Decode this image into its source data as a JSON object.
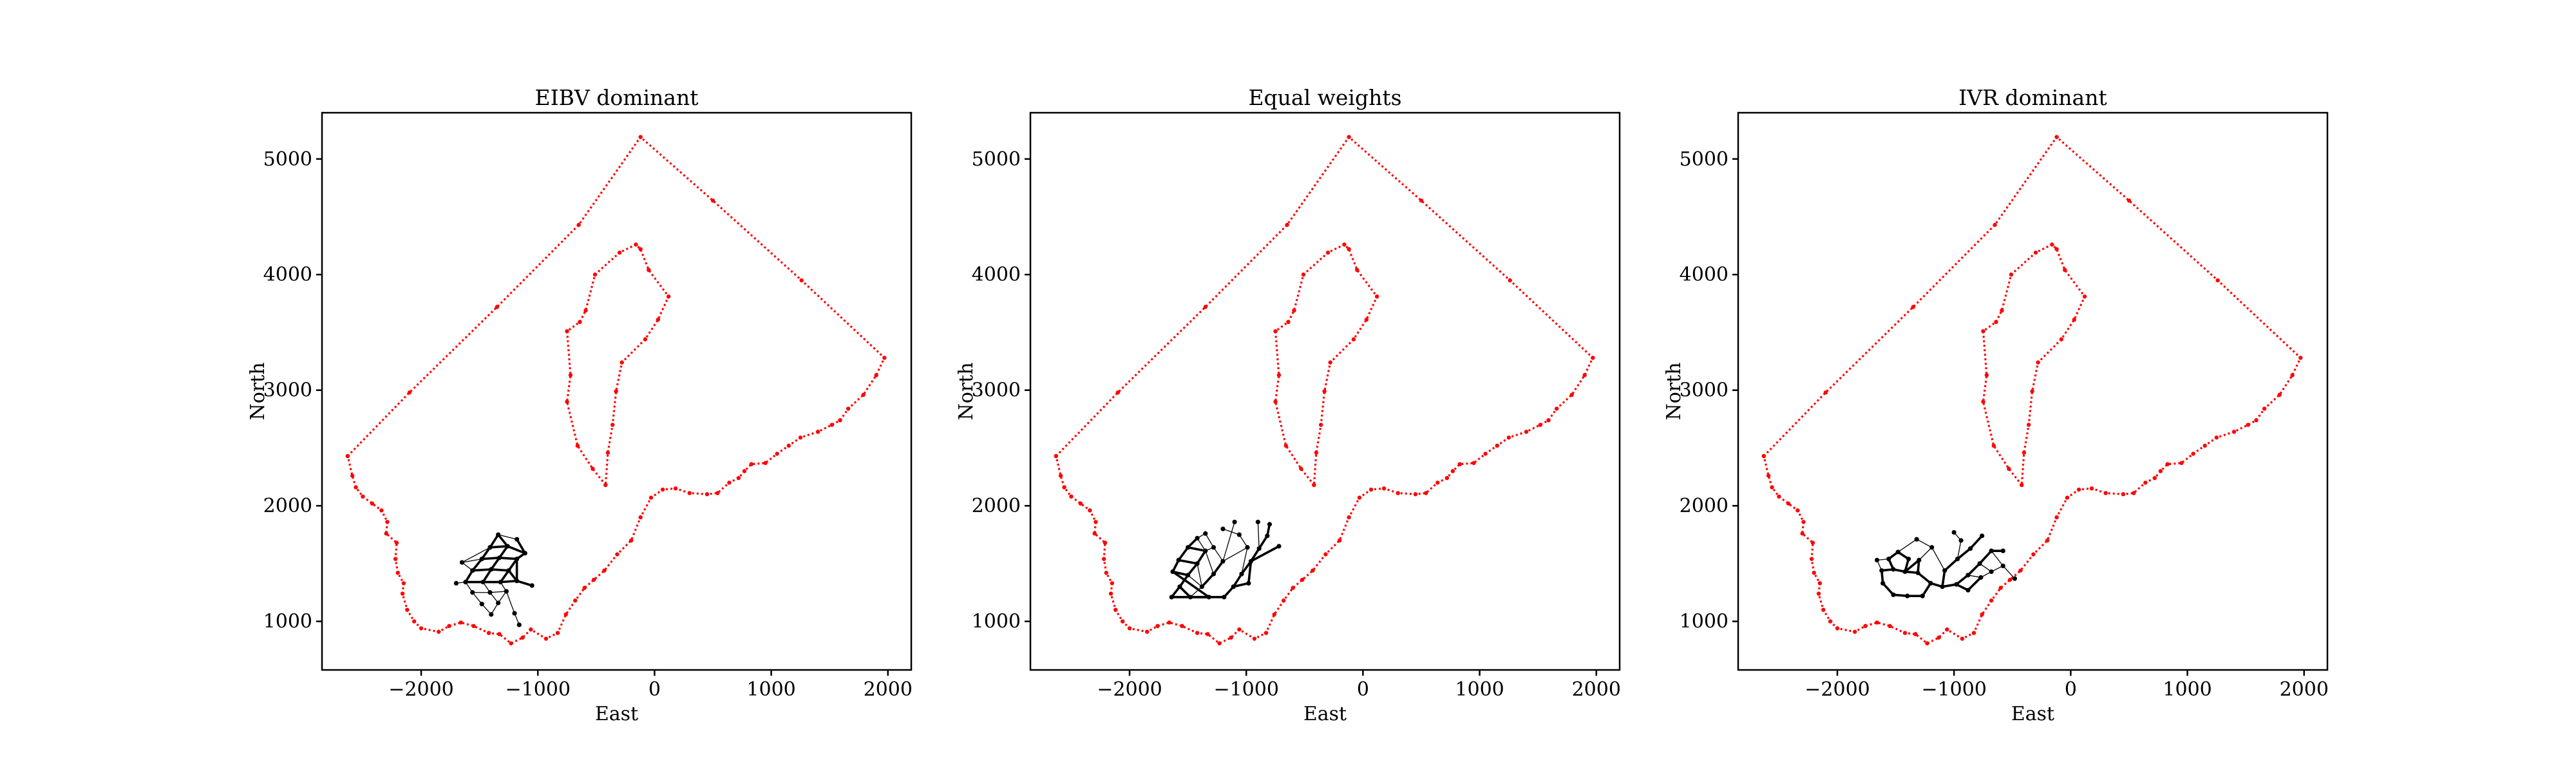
{
  "chart_data": [
    {
      "type": "scatter",
      "title": "EIBV dominant",
      "xlabel": "East",
      "ylabel": "North",
      "xlim": [
        -2850,
        2200
      ],
      "ylim": [
        580,
        5400
      ],
      "xticks": [
        -2000,
        -1000,
        0,
        1000,
        2000
      ],
      "yticks": [
        1000,
        2000,
        3000,
        4000,
        5000
      ],
      "boundary_color": "#ff0000",
      "path_color": "#000000",
      "paths": {
        "nodes": [
          [
            -1340,
            1750
          ],
          [
            -1180,
            1710
          ],
          [
            -1410,
            1640
          ],
          [
            -1260,
            1650
          ],
          [
            -1110,
            1590
          ],
          [
            -1480,
            1540
          ],
          [
            -1330,
            1550
          ],
          [
            -1180,
            1540
          ],
          [
            -1560,
            1440
          ],
          [
            -1400,
            1450
          ],
          [
            -1250,
            1440
          ],
          [
            -1620,
            1340
          ],
          [
            -1470,
            1340
          ],
          [
            -1320,
            1340
          ],
          [
            -1180,
            1350
          ],
          [
            -1050,
            1310
          ],
          [
            -1560,
            1250
          ],
          [
            -1410,
            1250
          ],
          [
            -1270,
            1260
          ],
          [
            -1480,
            1150
          ],
          [
            -1340,
            1160
          ],
          [
            -1400,
            1060
          ],
          [
            -1200,
            1070
          ],
          [
            -1160,
            970
          ],
          [
            -1650,
            1510
          ],
          [
            -1700,
            1330
          ]
        ],
        "heavy": [
          [
            0,
            2
          ],
          [
            2,
            5
          ],
          [
            5,
            8
          ],
          [
            8,
            11
          ],
          [
            0,
            3
          ],
          [
            3,
            6
          ],
          [
            6,
            9
          ],
          [
            9,
            12
          ],
          [
            1,
            4
          ],
          [
            4,
            7
          ],
          [
            7,
            10
          ],
          [
            10,
            13
          ],
          [
            3,
            4
          ],
          [
            6,
            7
          ],
          [
            9,
            10
          ],
          [
            12,
            13
          ],
          [
            13,
            14
          ],
          [
            14,
            15
          ],
          [
            10,
            14
          ],
          [
            11,
            12
          ],
          [
            8,
            9
          ],
          [
            5,
            6
          ],
          [
            2,
            3
          ],
          [
            7,
            14
          ]
        ],
        "light": [
          [
            11,
            16
          ],
          [
            16,
            19
          ],
          [
            19,
            21
          ],
          [
            12,
            17
          ],
          [
            17,
            20
          ],
          [
            13,
            18
          ],
          [
            18,
            20
          ],
          [
            18,
            22
          ],
          [
            22,
            23
          ],
          [
            16,
            17
          ],
          [
            17,
            18
          ],
          [
            20,
            21
          ],
          [
            8,
            24
          ],
          [
            11,
            25
          ],
          [
            24,
            5
          ],
          [
            15,
            14
          ],
          [
            2,
            24
          ],
          [
            1,
            0
          ]
        ]
      }
    },
    {
      "type": "scatter",
      "title": "Equal weights",
      "xlabel": "East",
      "ylabel": "North",
      "xlim": [
        -2850,
        2200
      ],
      "ylim": [
        580,
        5400
      ],
      "xticks": [
        -2000,
        -1000,
        0,
        1000,
        2000
      ],
      "yticks": [
        1000,
        2000,
        3000,
        4000,
        5000
      ],
      "boundary_color": "#ff0000",
      "path_color": "#000000",
      "paths": {
        "nodes": [
          [
            -1630,
            1430
          ],
          [
            -1580,
            1530
          ],
          [
            -1500,
            1640
          ],
          [
            -1420,
            1720
          ],
          [
            -1350,
            1610
          ],
          [
            -1420,
            1500
          ],
          [
            -1500,
            1400
          ],
          [
            -1570,
            1300
          ],
          [
            -1640,
            1210
          ],
          [
            -1480,
            1210
          ],
          [
            -1380,
            1300
          ],
          [
            -1280,
            1410
          ],
          [
            -1200,
            1520
          ],
          [
            -1280,
            1640
          ],
          [
            -1350,
            1760
          ],
          [
            -1190,
            1210
          ],
          [
            -1110,
            1300
          ],
          [
            -1040,
            1410
          ],
          [
            -960,
            1520
          ],
          [
            -890,
            1630
          ],
          [
            -820,
            1740
          ],
          [
            -990,
            1640
          ],
          [
            -1060,
            1750
          ],
          [
            -1200,
            1800
          ],
          [
            -1100,
            1860
          ],
          [
            -900,
            1860
          ],
          [
            -800,
            1840
          ],
          [
            -720,
            1650
          ],
          [
            -1320,
            1210
          ],
          [
            -980,
            1330
          ]
        ],
        "heavy": [
          [
            0,
            1
          ],
          [
            1,
            2
          ],
          [
            2,
            3
          ],
          [
            0,
            6
          ],
          [
            6,
            7
          ],
          [
            7,
            8
          ],
          [
            8,
            28
          ],
          [
            28,
            9
          ],
          [
            9,
            15
          ],
          [
            5,
            6
          ],
          [
            4,
            5
          ],
          [
            10,
            11
          ],
          [
            11,
            12
          ],
          [
            15,
            16
          ],
          [
            16,
            17
          ],
          [
            17,
            18
          ],
          [
            18,
            19
          ],
          [
            19,
            20
          ],
          [
            20,
            26
          ],
          [
            16,
            29
          ],
          [
            29,
            18
          ],
          [
            18,
            27
          ],
          [
            0,
            28
          ],
          [
            1,
            5
          ],
          [
            2,
            4
          ],
          [
            7,
            9
          ]
        ],
        "light": [
          [
            3,
            14
          ],
          [
            4,
            13
          ],
          [
            13,
            14
          ],
          [
            5,
            10
          ],
          [
            10,
            9
          ],
          [
            12,
            13
          ],
          [
            11,
            4
          ],
          [
            12,
            21
          ],
          [
            21,
            22
          ],
          [
            22,
            23
          ],
          [
            21,
            17
          ],
          [
            19,
            25
          ],
          [
            12,
            24
          ],
          [
            3,
            4
          ],
          [
            6,
            10
          ]
        ]
      }
    },
    {
      "type": "scatter",
      "title": "IVR dominant",
      "xlabel": "East",
      "ylabel": "North",
      "xlim": [
        -2850,
        2200
      ],
      "ylim": [
        580,
        5400
      ],
      "xticks": [
        -2000,
        -1000,
        0,
        1000,
        2000
      ],
      "yticks": [
        1000,
        2000,
        3000,
        4000,
        5000
      ],
      "boundary_color": "#ff0000",
      "path_color": "#000000",
      "paths": {
        "nodes": [
          [
            -1620,
            1440
          ],
          [
            -1520,
            1450
          ],
          [
            -1420,
            1430
          ],
          [
            -1310,
            1420
          ],
          [
            -1200,
            1330
          ],
          [
            -1100,
            1300
          ],
          [
            -980,
            1320
          ],
          [
            -880,
            1400
          ],
          [
            -780,
            1500
          ],
          [
            -680,
            1610
          ],
          [
            -580,
            1610
          ],
          [
            -1610,
            1330
          ],
          [
            -1520,
            1230
          ],
          [
            -1400,
            1220
          ],
          [
            -1270,
            1220
          ],
          [
            -1560,
            1540
          ],
          [
            -1480,
            1600
          ],
          [
            -1390,
            1540
          ],
          [
            -1300,
            1530
          ],
          [
            -1080,
            1440
          ],
          [
            -970,
            1540
          ],
          [
            -860,
            1630
          ],
          [
            -760,
            1740
          ],
          [
            -1000,
            1770
          ],
          [
            -940,
            1700
          ],
          [
            -770,
            1380
          ],
          [
            -680,
            1430
          ],
          [
            -580,
            1480
          ],
          [
            -480,
            1370
          ],
          [
            -880,
            1270
          ],
          [
            -1190,
            1640
          ],
          [
            -1320,
            1710
          ],
          [
            -1660,
            1530
          ]
        ],
        "heavy": [
          [
            0,
            1
          ],
          [
            1,
            2
          ],
          [
            2,
            3
          ],
          [
            3,
            4
          ],
          [
            4,
            5
          ],
          [
            5,
            6
          ],
          [
            6,
            7
          ],
          [
            7,
            8
          ],
          [
            8,
            9
          ],
          [
            9,
            10
          ],
          [
            0,
            11
          ],
          [
            11,
            12
          ],
          [
            12,
            13
          ],
          [
            13,
            14
          ],
          [
            14,
            4
          ],
          [
            15,
            1
          ],
          [
            15,
            16
          ],
          [
            16,
            17
          ],
          [
            17,
            2
          ],
          [
            2,
            18
          ],
          [
            18,
            3
          ],
          [
            5,
            19
          ],
          [
            19,
            20
          ],
          [
            20,
            21
          ],
          [
            21,
            22
          ],
          [
            6,
            29
          ],
          [
            29,
            25
          ]
        ],
        "light": [
          [
            7,
            25
          ],
          [
            25,
            26
          ],
          [
            26,
            27
          ],
          [
            27,
            28
          ],
          [
            8,
            26
          ],
          [
            20,
            24
          ],
          [
            24,
            23
          ],
          [
            19,
            30
          ],
          [
            30,
            31
          ],
          [
            18,
            30
          ],
          [
            0,
            32
          ],
          [
            32,
            15
          ],
          [
            16,
            31
          ],
          [
            9,
            27
          ]
        ]
      }
    }
  ]
}
